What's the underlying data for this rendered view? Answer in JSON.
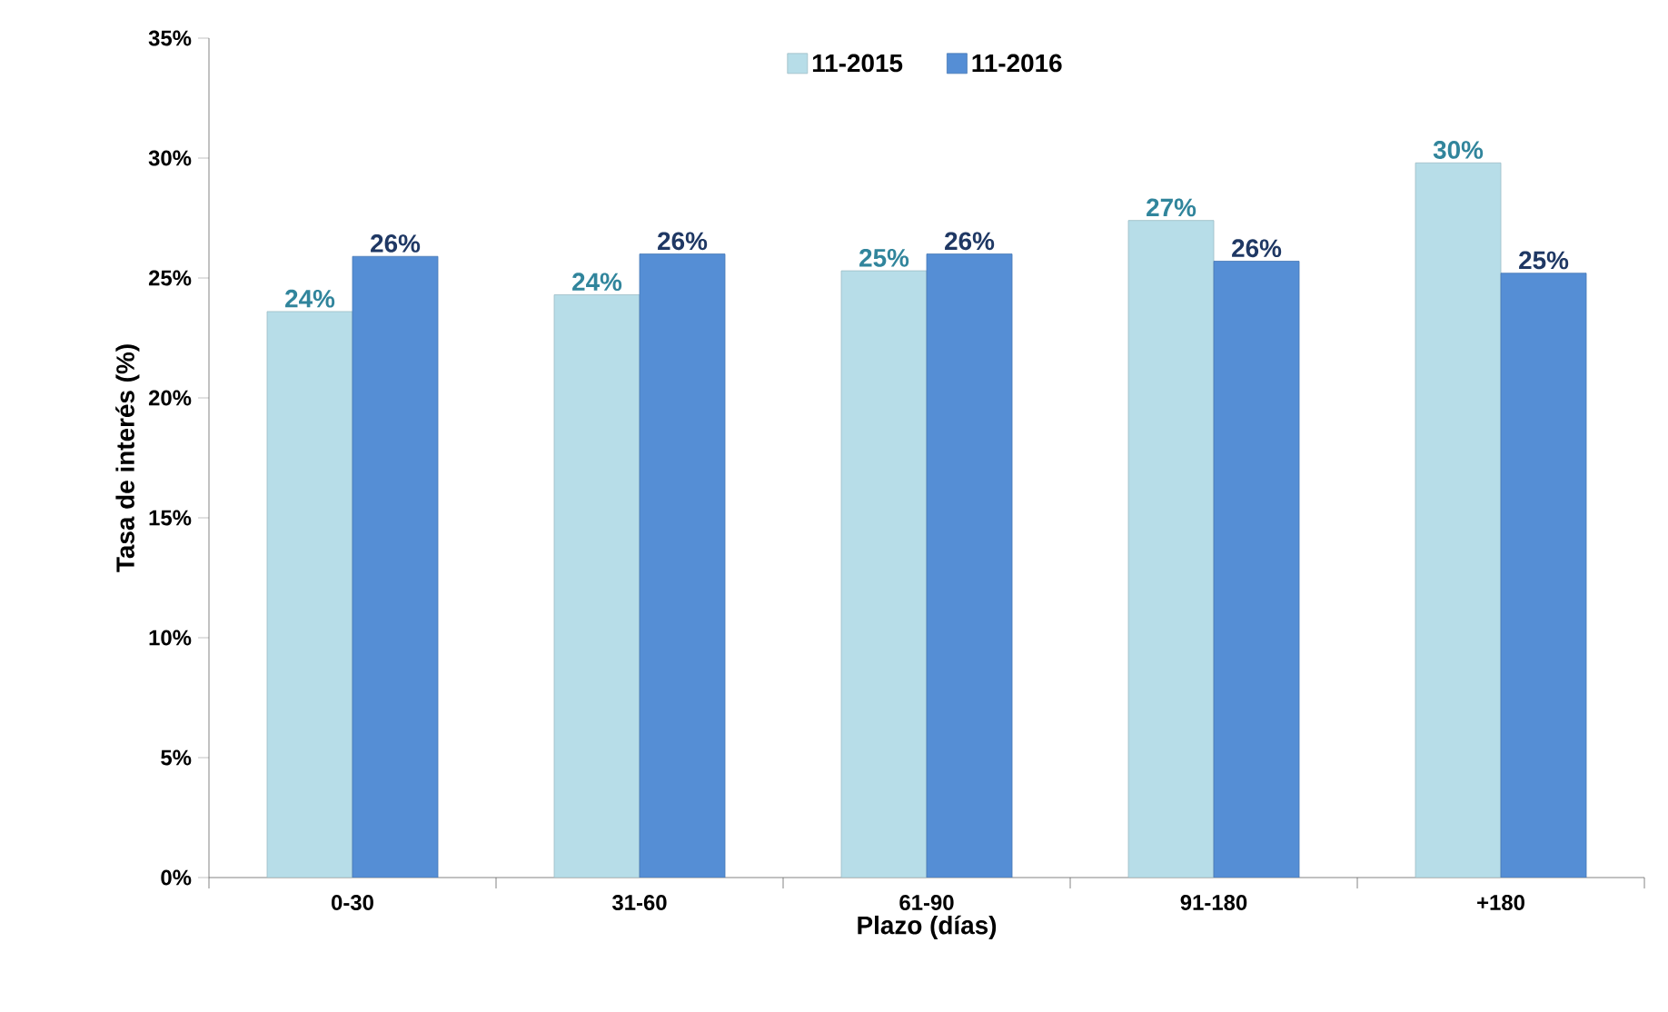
{
  "chart_data": {
    "type": "bar",
    "xlabel": "Plazo (días)",
    "ylabel": "Tasa de interés (%)",
    "categories": [
      "0-30",
      "31-60",
      "61-90",
      "91-180",
      "+180"
    ],
    "series": [
      {
        "name": "11-2015",
        "color": "#b7dde8",
        "values": [
          23.6,
          24.3,
          25.3,
          27.4,
          29.8
        ],
        "value_labels": [
          "24%",
          "24%",
          "25%",
          "27%",
          "30%"
        ]
      },
      {
        "name": "11-2016",
        "color": "#558ed5",
        "values": [
          25.9,
          26.0,
          26.0,
          25.7,
          25.2
        ],
        "value_labels": [
          "26%",
          "26%",
          "26%",
          "26%",
          "25%"
        ]
      }
    ],
    "ylim": [
      0,
      35
    ],
    "yticks": [
      {
        "value": 0,
        "label": "0%"
      },
      {
        "value": 5,
        "label": "5%"
      },
      {
        "value": 10,
        "label": "10%"
      },
      {
        "value": 15,
        "label": "15%"
      },
      {
        "value": 20,
        "label": "20%"
      },
      {
        "value": 25,
        "label": "25%"
      },
      {
        "value": 30,
        "label": "30%"
      },
      {
        "value": 35,
        "label": "35%"
      }
    ],
    "grid": false,
    "legend": "top"
  }
}
